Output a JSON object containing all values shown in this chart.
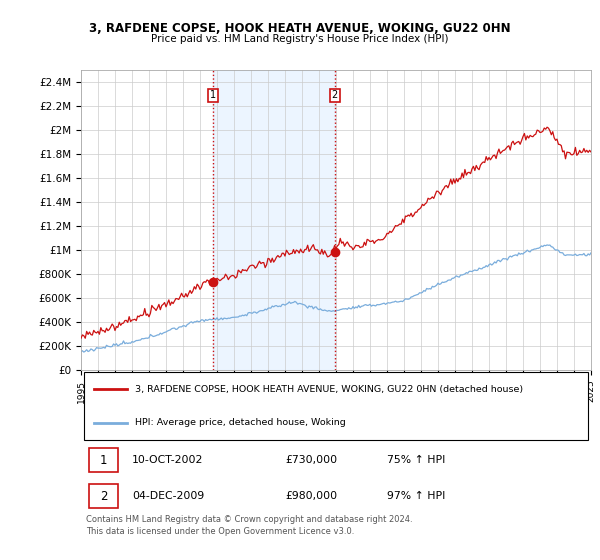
{
  "title": "3, RAFDENE COPSE, HOOK HEATH AVENUE, WOKING, GU22 0HN",
  "subtitle": "Price paid vs. HM Land Registry's House Price Index (HPI)",
  "ylim": [
    0,
    2500000
  ],
  "yticks": [
    0,
    200000,
    400000,
    600000,
    800000,
    1000000,
    1200000,
    1400000,
    1600000,
    1800000,
    2000000,
    2200000,
    2400000
  ],
  "ytick_labels": [
    "£0",
    "£200K",
    "£400K",
    "£600K",
    "£800K",
    "£1M",
    "£1.2M",
    "£1.4M",
    "£1.6M",
    "£1.8M",
    "£2M",
    "£2.2M",
    "£2.4M"
  ],
  "hpi_color": "#7aaddc",
  "price_color": "#cc1111",
  "vline_color": "#cc1111",
  "vline_style": ":",
  "shaded_color": "#ddeeff",
  "shaded_alpha": 0.55,
  "transaction1_date_x": 2002.78,
  "transaction1_price": 730000,
  "transaction1_label": "1",
  "transaction2_date_x": 2009.92,
  "transaction2_price": 980000,
  "transaction2_label": "2",
  "legend_line1": "3, RAFDENE COPSE, HOOK HEATH AVENUE, WOKING, GU22 0HN (detached house)",
  "legend_line2": "HPI: Average price, detached house, Woking",
  "table_row1": [
    "1",
    "10-OCT-2002",
    "£730,000",
    "75% ↑ HPI"
  ],
  "table_row2": [
    "2",
    "04-DEC-2009",
    "£980,000",
    "97% ↑ HPI"
  ],
  "footnote": "Contains HM Land Registry data © Crown copyright and database right 2024.\nThis data is licensed under the Open Government Licence v3.0.",
  "xmin": 1995,
  "xmax": 2025,
  "grid_color": "#cccccc",
  "background_color": "white"
}
